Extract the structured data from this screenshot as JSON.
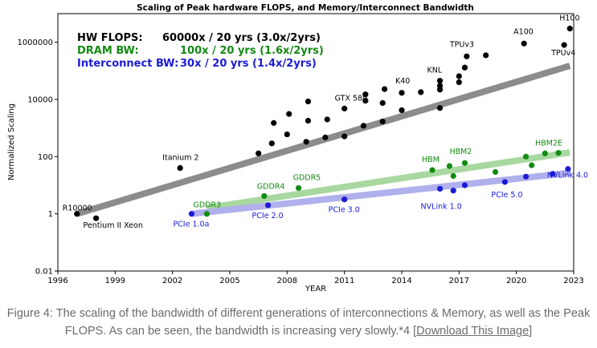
{
  "chart_data": {
    "type": "scatter",
    "title": "Scaling of Peak hardware FLOPS, and Memory/Interconnect Bandwidth",
    "xlabel": "YEAR",
    "ylabel": "Normalized Scaling",
    "xlim": [
      1996,
      2023
    ],
    "ylim": [
      0.01,
      10000000
    ],
    "yscale": "log",
    "xticks": [
      1996,
      1999,
      2002,
      2005,
      2008,
      2011,
      2014,
      2017,
      2020,
      2023
    ],
    "yticks": [
      {
        "value": 0.01,
        "label": "0.01"
      },
      {
        "value": 1,
        "label": "1"
      },
      {
        "value": 100,
        "label": "100"
      },
      {
        "value": 10000,
        "label": "10000"
      },
      {
        "value": 1000000,
        "label": "1000000"
      }
    ],
    "legend": {
      "position": "top-left",
      "entries": [
        {
          "name": "HW FLOPS:",
          "text": "60000x / 20 yrs (3.0x/2yrs)",
          "color": "#000000"
        },
        {
          "name": "DRAM BW:",
          "text": "100x / 20 yrs (1.6x/2yrs)",
          "color": "#138a13"
        },
        {
          "name": "Interconnect BW:",
          "text": "30x / 20 yrs (1.4x/2yrs)",
          "color": "#1b1bd6"
        }
      ]
    },
    "series": [
      {
        "name": "HW FLOPS",
        "color": "#000000",
        "trend_color": "#8c8c8c",
        "trend": [
          [
            1997,
            1
          ],
          [
            2022.8,
            150000
          ]
        ],
        "points": [
          [
            1997,
            1
          ],
          [
            1998,
            0.7
          ],
          [
            2002.4,
            40
          ],
          [
            2006.5,
            130
          ],
          [
            2007.2,
            290
          ],
          [
            2007.3,
            1500
          ],
          [
            2008,
            600
          ],
          [
            2008.1,
            3100
          ],
          [
            2009,
            330
          ],
          [
            2009.1,
            1800
          ],
          [
            2009.1,
            8500
          ],
          [
            2010,
            470
          ],
          [
            2010.1,
            2000
          ],
          [
            2011,
            510
          ],
          [
            2011,
            4800
          ],
          [
            2012,
            1200
          ],
          [
            2012.1,
            9000
          ],
          [
            2012.1,
            15000
          ],
          [
            2013,
            1700
          ],
          [
            2013,
            7500
          ],
          [
            2013.1,
            23000
          ],
          [
            2014,
            4200
          ],
          [
            2014,
            17000
          ],
          [
            2015,
            18000
          ],
          [
            2016,
            5000
          ],
          [
            2016,
            22000
          ],
          [
            2016,
            30000
          ],
          [
            2016,
            45000
          ],
          [
            2017,
            40000
          ],
          [
            2017,
            65000
          ],
          [
            2017.3,
            130000
          ],
          [
            2017.4,
            320000
          ],
          [
            2018.4,
            350000
          ],
          [
            2020.4,
            900000
          ],
          [
            2022.5,
            800000
          ],
          [
            2022.8,
            3000000
          ]
        ],
        "labels": [
          {
            "text": "R10000",
            "x": 1997,
            "y": 1
          },
          {
            "text": "Pentium II Xeon",
            "x": 1998,
            "y": 0.7
          },
          {
            "text": "Itanium 2",
            "x": 2002.4,
            "y": 40
          },
          {
            "text": "GTX 580",
            "x": 2011,
            "y": 4800
          },
          {
            "text": "K40",
            "x": 2014,
            "y": 17000
          },
          {
            "text": "KNL",
            "x": 2016,
            "y": 45000
          },
          {
            "text": "TPUv3",
            "x": 2017.4,
            "y": 320000
          },
          {
            "text": "A100",
            "x": 2020.4,
            "y": 900000
          },
          {
            "text": "H100",
            "x": 2022.8,
            "y": 3000000
          },
          {
            "text": "TPUv4",
            "x": 2022.5,
            "y": 800000
          }
        ]
      },
      {
        "name": "DRAM BW",
        "color": "#138a13",
        "trend_color": "#a8d8a0",
        "trend": [
          [
            2003.8,
            1.6
          ],
          [
            2022.8,
            140
          ]
        ],
        "points": [
          [
            2003.8,
            1
          ],
          [
            2006.8,
            4.2
          ],
          [
            2008.6,
            8
          ],
          [
            2015.6,
            34
          ],
          [
            2016.5,
            47
          ],
          [
            2016.7,
            21
          ],
          [
            2017.3,
            60
          ],
          [
            2018.9,
            29
          ],
          [
            2020.5,
            100
          ],
          [
            2020.8,
            50
          ],
          [
            2021.5,
            130
          ],
          [
            2022.2,
            135
          ]
        ],
        "labels": [
          {
            "text": "GDDR3",
            "x": 2003.8,
            "y": 1
          },
          {
            "text": "GDDR4",
            "x": 2006.8,
            "y": 4.2
          },
          {
            "text": "GDDR5",
            "x": 2008.6,
            "y": 8
          },
          {
            "text": "HBM",
            "x": 2015.6,
            "y": 34
          },
          {
            "text": "HBM2",
            "x": 2017.3,
            "y": 60
          },
          {
            "text": "HBM2E",
            "x": 2022.2,
            "y": 135
          }
        ]
      },
      {
        "name": "Interconnect BW",
        "color": "#1b1bd6",
        "trend_color": "#b0b0ec",
        "trend": [
          [
            2003,
            1
          ],
          [
            2022.8,
            27
          ]
        ],
        "points": [
          [
            2003,
            1
          ],
          [
            2007,
            2
          ],
          [
            2011,
            3.2
          ],
          [
            2016,
            7.5
          ],
          [
            2016.7,
            6.5
          ],
          [
            2017.3,
            10
          ],
          [
            2019.4,
            13
          ],
          [
            2020.5,
            20
          ],
          [
            2021.9,
            25
          ],
          [
            2022.7,
            37
          ]
        ],
        "labels": [
          {
            "text": "PCIe 1.0a",
            "x": 2003,
            "y": 1
          },
          {
            "text": "PCIe 2.0",
            "x": 2007,
            "y": 2
          },
          {
            "text": "PCIe 3.0",
            "x": 2011,
            "y": 3.2
          },
          {
            "text": "NVLink 1.0",
            "x": 2016,
            "y": 7.5
          },
          {
            "text": "PCIe 5.0",
            "x": 2019.4,
            "y": 13
          },
          {
            "text": "NVLink 4.0",
            "x": 2022.7,
            "y": 37
          }
        ]
      }
    ]
  },
  "caption": {
    "text": "Figure 4: The scaling of the bandwidth of different generations of interconnections & Memory, as well as the Peak FLOPS. As can be seen, the bandwidth is increasing very slowly.*4 [",
    "link": "Download This Image",
    "close": "]"
  }
}
